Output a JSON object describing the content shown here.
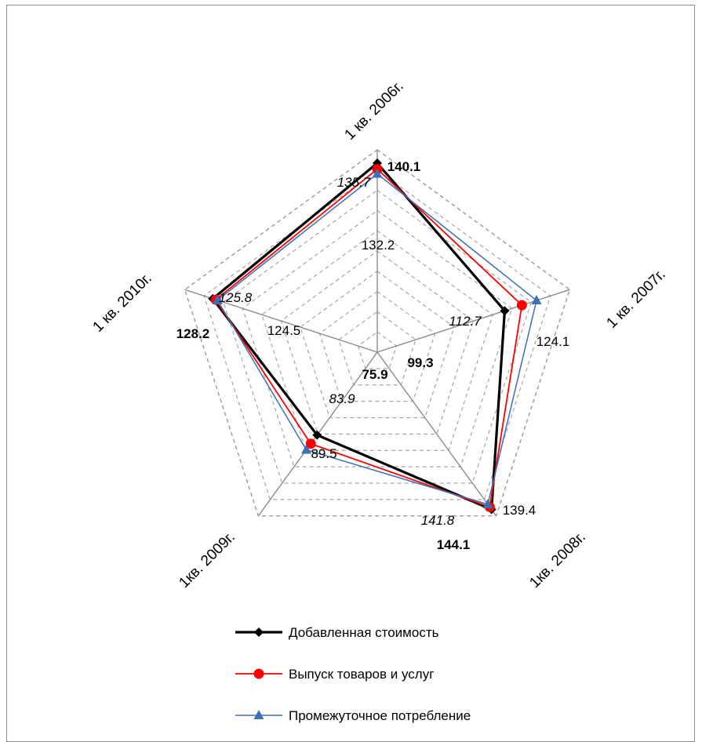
{
  "chart_data": {
    "type": "radar",
    "categories": [
      "1 кв. 2006г.",
      "1 кв. 2007г.",
      "1кв. 2008г.",
      "1кв. 2009г.",
      "1 кв. 2010г."
    ],
    "rlim": [
      0,
      150
    ],
    "grid": true,
    "legend": "bottom",
    "series": [
      {
        "name": "Добавленная стоимость",
        "values": [
          140.1,
          99.3,
          144.1,
          75.9,
          128.2
        ],
        "labels": [
          "140.1",
          "99.3",
          "144.1",
          "75.9",
          "128.2"
        ],
        "color": "#000000",
        "marker": "diamond"
      },
      {
        "name": "Выпуск товаров и услуг",
        "values": [
          135.7,
          112.7,
          141.8,
          83.9,
          125.8
        ],
        "labels": [
          "135.7",
          "112.7",
          "141.8",
          "83.9",
          "125.8"
        ],
        "color": "#ff0000",
        "marker": "circle"
      },
      {
        "name": "Промежуточное потребление",
        "values": [
          132.2,
          124.1,
          139.4,
          89.5,
          124.5
        ],
        "labels": [
          "132.2",
          "124.1",
          "139.4",
          "89.5",
          "124.5"
        ],
        "color": "#3b6fb6",
        "marker": "triangle"
      }
    ]
  }
}
